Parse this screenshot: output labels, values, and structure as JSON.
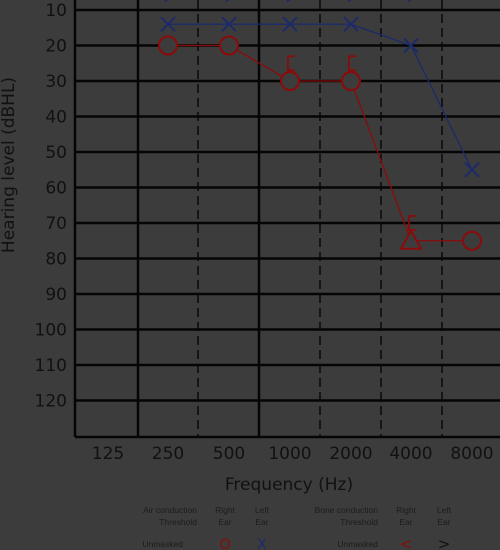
{
  "chart_data": {
    "type": "line",
    "title": "",
    "xlabel": "Frequency (Hz)",
    "ylabel": "Hearing level (dBHL)",
    "x_ticks": [
      "125",
      "250",
      "500",
      "1000",
      "2000",
      "4000",
      "8000"
    ],
    "y_ticks": [
      10,
      20,
      30,
      40,
      50,
      60,
      70,
      80,
      90,
      100,
      110,
      120
    ],
    "ylim": [
      7,
      130
    ],
    "y_inverted": true,
    "grid": true,
    "series": [
      {
        "name": "Right Ear",
        "color": "#8b0b0b",
        "points": [
          {
            "x": "250",
            "y": 20,
            "marker": "circle"
          },
          {
            "x": "500",
            "y": 20,
            "marker": "circle"
          },
          {
            "x": "1000",
            "y": 30,
            "marker": "circle"
          },
          {
            "x": "2000",
            "y": 30,
            "marker": "circle"
          },
          {
            "x": "4000",
            "y": 75,
            "marker": "triangle"
          },
          {
            "x": "8000",
            "y": 75,
            "marker": "circle"
          }
        ]
      },
      {
        "name": "Left Ear",
        "color": "#1c2a6a",
        "points": [
          {
            "x": "250",
            "y": 14,
            "marker": "x"
          },
          {
            "x": "500",
            "y": 14,
            "marker": "x"
          },
          {
            "x": "1000",
            "y": 14,
            "marker": "x"
          },
          {
            "x": "2000",
            "y": 14,
            "marker": "x"
          },
          {
            "x": "4000",
            "y": 20,
            "marker": "x"
          },
          {
            "x": "8000",
            "y": 55,
            "marker": "x"
          }
        ]
      }
    ],
    "bone_markers": [
      {
        "x": "250",
        "y": 7,
        "symbol": ">",
        "ear": "left"
      },
      {
        "x": "500",
        "y": 7,
        "symbol": ">",
        "ear": "left"
      },
      {
        "x": "1000",
        "y": 7,
        "symbol": ">",
        "ear": "left"
      },
      {
        "x": "2000",
        "y": 7,
        "symbol": ">",
        "ear": "left"
      },
      {
        "x": "4000",
        "y": 7,
        "symbol": ">",
        "ear": "left"
      },
      {
        "x": "1000",
        "y": 25,
        "symbol": "[",
        "ear": "right"
      },
      {
        "x": "2000",
        "y": 25,
        "symbol": "[",
        "ear": "right"
      },
      {
        "x": "4000",
        "y": 70,
        "symbol": "[",
        "ear": "right"
      }
    ],
    "legend": {
      "placement": "bottom",
      "air_title_1": "Air conduction",
      "air_title_2": "Threshold",
      "bone_title_1": "Bone conduction",
      "bone_title_2": "Threshold",
      "right_1": "Right",
      "right_2": "Ear",
      "left_1": "Left",
      "left_2": "Ear",
      "unmasked": "Unmasked",
      "air_right_symbol": "O",
      "air_left_symbol": "X",
      "bone_right_symbol": "<",
      "bone_left_symbol": ">"
    }
  }
}
